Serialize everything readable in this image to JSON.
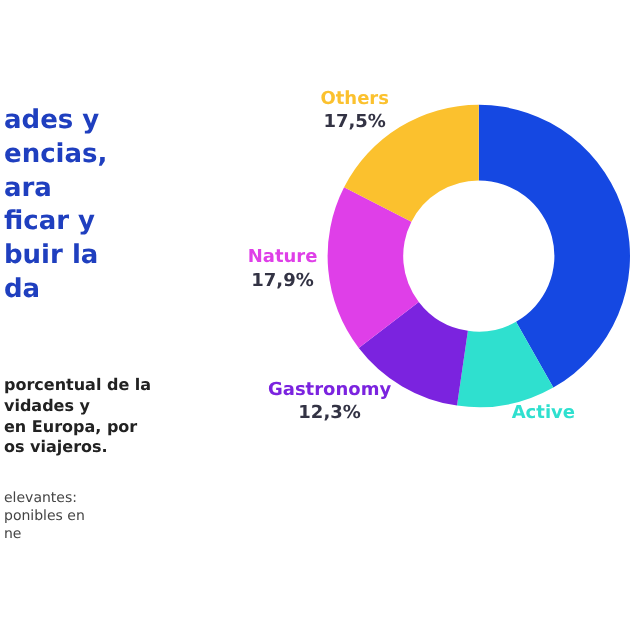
{
  "chart_data": {
    "type": "donut",
    "title": "ades y\nencias,\nara\nficar y\nbuir la\nda",
    "subtitle": "porcentual de la\nvidades y\nen Europa, por\nos viajeros.",
    "annotations": [
      "elevantes:\nponibles en\nne"
    ],
    "categories": [
      null,
      "Active",
      "Gastronomy",
      "Nature",
      "Others"
    ],
    "values": [
      41.8,
      10.5,
      12.3,
      17.9,
      17.5
    ],
    "value_labels": [
      null,
      null,
      "12,3%",
      "17,9%",
      "17,5%"
    ],
    "colors": [
      "#1548e2",
      "#2fe0cf",
      "#7b23df",
      "#df3fe8",
      "#fbc12e"
    ],
    "legend": false
  }
}
